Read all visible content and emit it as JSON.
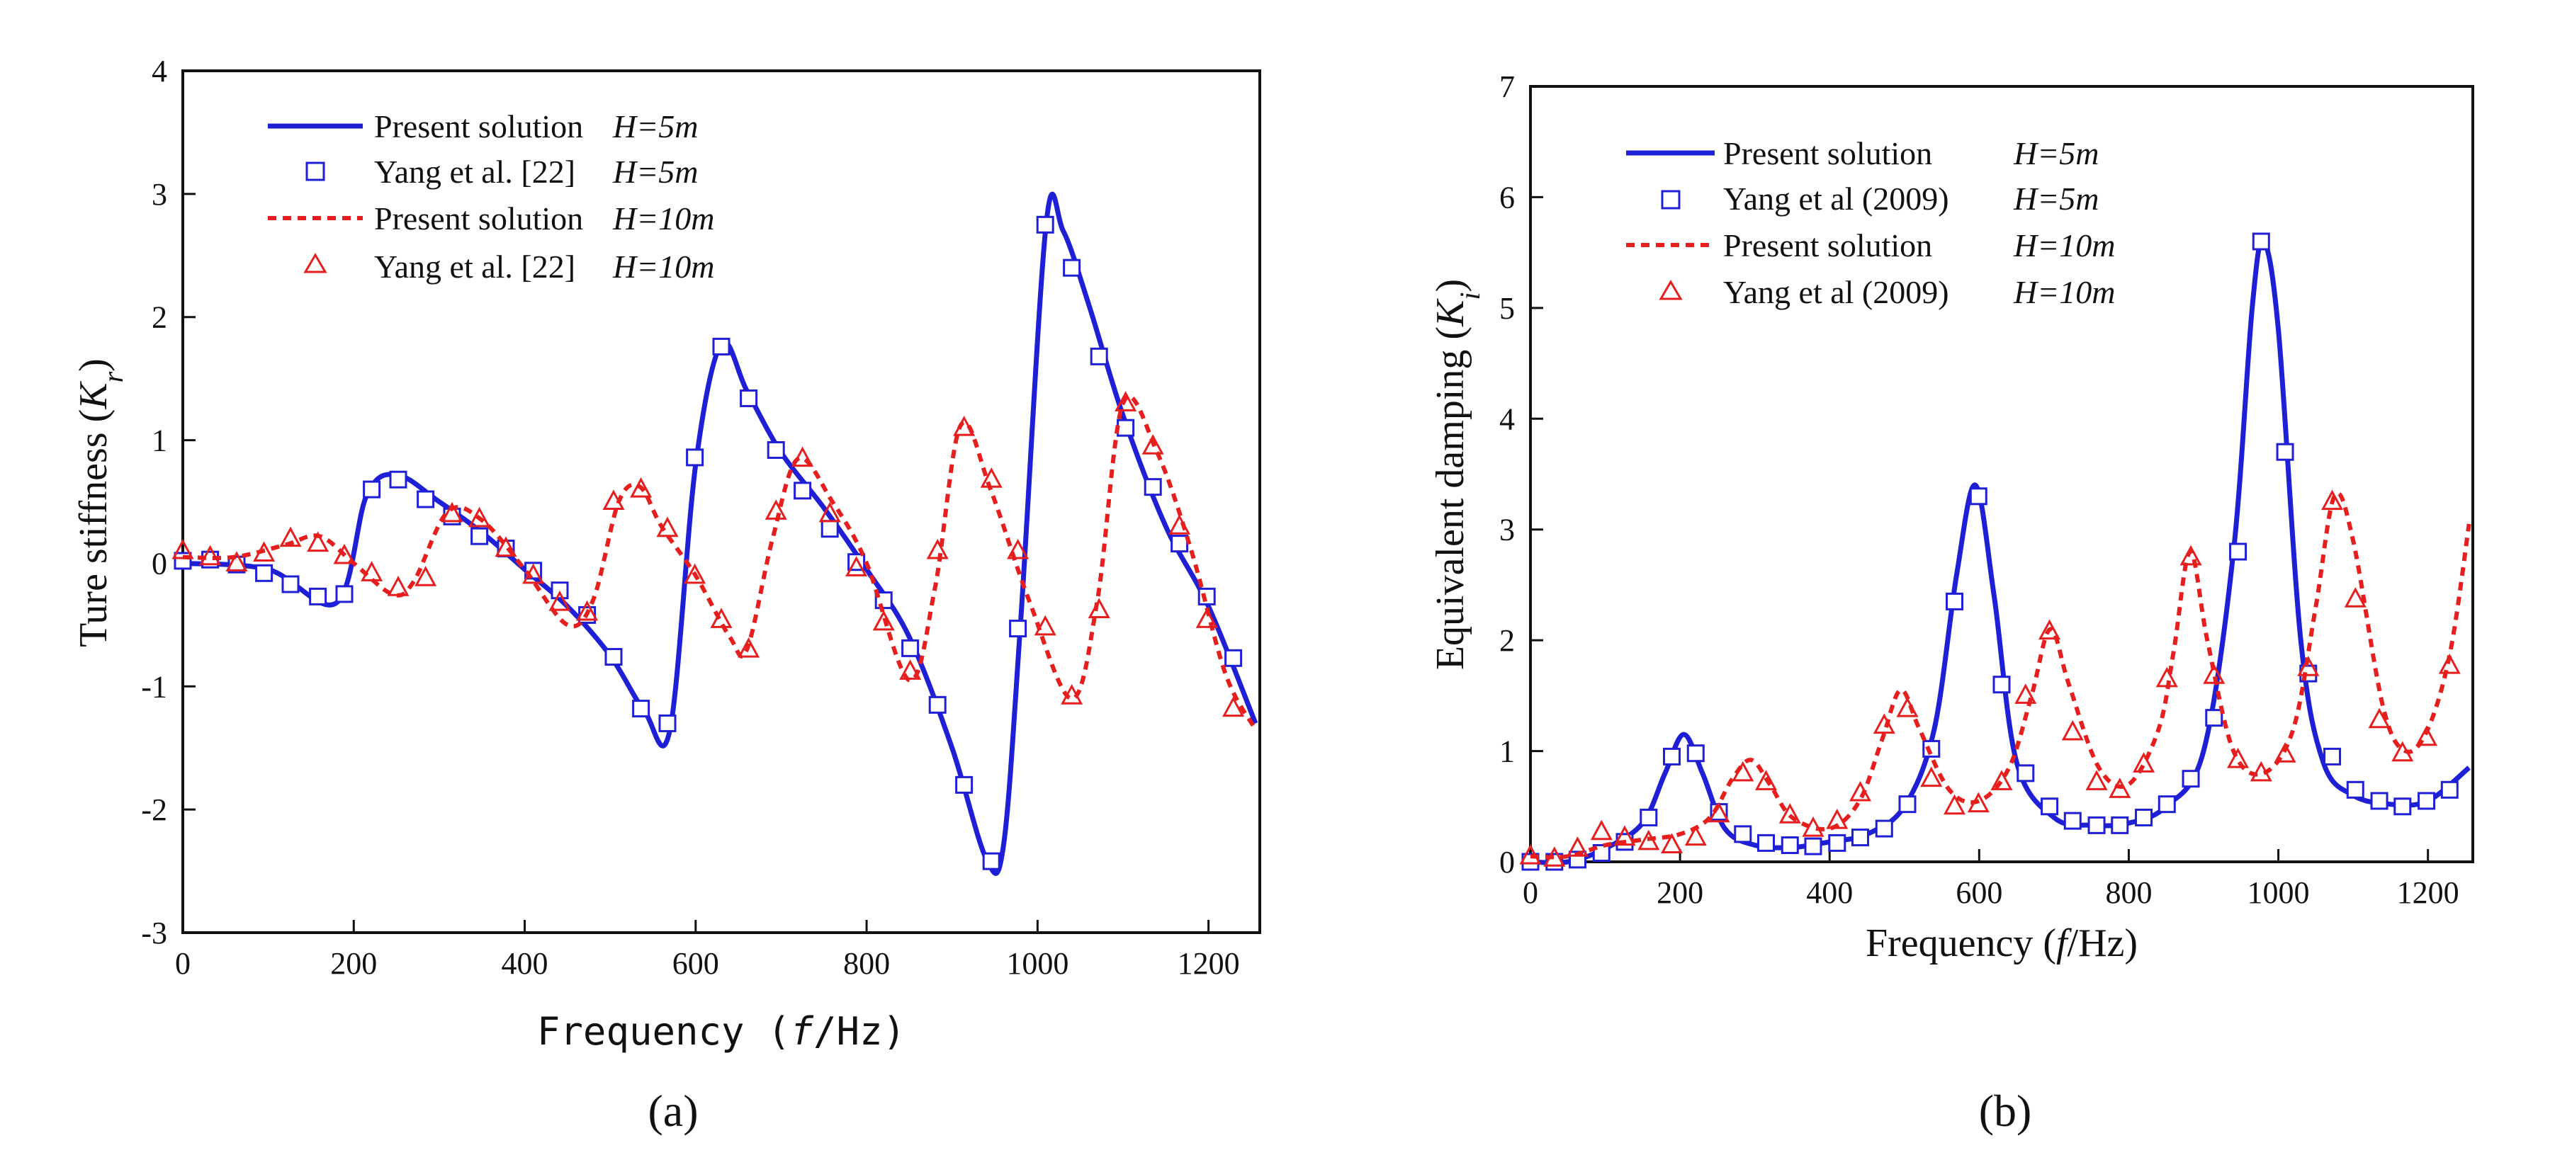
{
  "chart_data": [
    {
      "panel": "a",
      "panel_label": "(a)",
      "type": "line",
      "xlabel_prefix": "Frequency",
      "xlabel": "Frequency (f/Hz)",
      "ylabel_prefix": "Ture stiffness",
      "ylabel": "Ture stiffness (Kr)",
      "xlim": [
        0,
        1260
      ],
      "ylim": [
        -3,
        4
      ],
      "xticks": [
        0,
        200,
        400,
        600,
        800,
        1000,
        1200
      ],
      "yticks": [
        -3,
        -2,
        -1,
        0,
        1,
        2,
        3,
        4
      ],
      "legend_position": "top-left",
      "series": [
        {
          "name": "Present solution",
          "param": "H=5m",
          "style": "solid",
          "color": "#1f1fd6",
          "x": [
            0,
            100,
            180,
            215,
            250,
            300,
            350,
            400,
            450,
            500,
            540,
            570,
            600,
            630,
            660,
            700,
            750,
            800,
            850,
            900,
            940,
            960,
            980,
            1010,
            1030,
            1060,
            1100,
            1150,
            1200,
            1255
          ],
          "y": [
            0,
            -0.05,
            -0.32,
            0.55,
            0.72,
            0.5,
            0.25,
            -0.05,
            -0.35,
            -0.75,
            -1.2,
            -1.35,
            0.8,
            1.78,
            1.4,
            0.9,
            0.45,
            -0.05,
            -0.6,
            -1.5,
            -2.4,
            -2.3,
            -0.5,
            2.75,
            2.7,
            2.1,
            1.2,
            0.3,
            -0.35,
            -1.3
          ]
        },
        {
          "name": "Yang et al. [22]",
          "param": "H=5m",
          "style": "square",
          "color": "#1f1fd6",
          "x": [
            0,
            32,
            63,
            95,
            126,
            158,
            189,
            221,
            252,
            284,
            315,
            347,
            378,
            410,
            441,
            473,
            504,
            536,
            567,
            599,
            630,
            662,
            694,
            725,
            757,
            788,
            820,
            851,
            883,
            914,
            946,
            977,
            1009,
            1040,
            1072,
            1103,
            1135,
            1166,
            1198,
            1229
          ],
          "y": [
            0.02,
            0.03,
            -0.01,
            -0.08,
            -0.17,
            -0.27,
            -0.25,
            0.6,
            0.68,
            0.52,
            0.38,
            0.22,
            0.12,
            -0.06,
            -0.22,
            -0.42,
            -0.76,
            -1.18,
            -1.3,
            0.86,
            1.76,
            1.34,
            0.92,
            0.59,
            0.28,
            0.01,
            -0.3,
            -0.69,
            -1.15,
            -1.8,
            -2.42,
            -0.53,
            2.75,
            2.4,
            1.68,
            1.1,
            0.62,
            0.16,
            -0.27,
            -0.77
          ]
        },
        {
          "name": "Present solution",
          "param": "H=10m",
          "style": "dashed",
          "color": "#e61e1e",
          "x": [
            0,
            60,
            120,
            160,
            200,
            245,
            270,
            310,
            350,
            400,
            450,
            480,
            510,
            535,
            560,
            600,
            640,
            660,
            690,
            720,
            760,
            800,
            850,
            880,
            910,
            945,
            990,
            1040,
            1070,
            1100,
            1140,
            1180,
            1220,
            1255
          ],
          "y": [
            0.05,
            0.05,
            0.15,
            0.22,
            0.0,
            -0.25,
            -0.15,
            0.42,
            0.35,
            -0.05,
            -0.5,
            -0.3,
            0.5,
            0.62,
            0.3,
            -0.1,
            -0.6,
            -0.7,
            0.2,
            0.85,
            0.5,
            0.0,
            -0.95,
            -0.2,
            1.12,
            0.6,
            -0.3,
            -1.1,
            -0.3,
            1.3,
            0.9,
            0.1,
            -0.9,
            -1.35
          ]
        },
        {
          "name": "Yang et al. [22]",
          "param": "H=10m",
          "style": "triangle",
          "color": "#e61e1e",
          "x": [
            0,
            32,
            63,
            95,
            126,
            158,
            189,
            221,
            252,
            284,
            315,
            347,
            378,
            410,
            441,
            473,
            504,
            536,
            567,
            599,
            630,
            662,
            694,
            725,
            757,
            788,
            820,
            851,
            883,
            914,
            946,
            977,
            1009,
            1040,
            1072,
            1103,
            1135,
            1166,
            1198,
            1229
          ],
          "y": [
            0.1,
            0.05,
            0.0,
            0.08,
            0.2,
            0.16,
            0.06,
            -0.08,
            -0.2,
            -0.12,
            0.4,
            0.36,
            0.12,
            -0.1,
            -0.32,
            -0.4,
            0.5,
            0.6,
            0.28,
            -0.1,
            -0.46,
            -0.7,
            0.42,
            0.85,
            0.4,
            -0.04,
            -0.48,
            -0.88,
            0.1,
            1.1,
            0.68,
            0.1,
            -0.52,
            -1.08,
            -0.38,
            1.3,
            0.95,
            0.3,
            -0.46,
            -1.18
          ]
        }
      ]
    },
    {
      "panel": "b",
      "panel_label": "(b)",
      "type": "line",
      "xlabel_prefix": "Frequency",
      "xlabel": "Frequency (f/Hz)",
      "ylabel_prefix": "Equivalent damping",
      "ylabel": "Equivalent damping (Ki)",
      "xlim": [
        0,
        1260
      ],
      "ylim": [
        0,
        7
      ],
      "xticks": [
        0,
        200,
        400,
        600,
        800,
        1000,
        1200
      ],
      "yticks": [
        0,
        1,
        2,
        3,
        4,
        5,
        6,
        7
      ],
      "legend_position": "top-left",
      "series": [
        {
          "name": "Present solution",
          "param": "H=5m",
          "style": "solid",
          "color": "#1f1fd6",
          "x": [
            0,
            50,
            100,
            150,
            180,
            205,
            230,
            260,
            300,
            350,
            400,
            450,
            500,
            540,
            570,
            595,
            620,
            650,
            700,
            750,
            800,
            850,
            900,
            940,
            965,
            980,
            1000,
            1030,
            1060,
            1100,
            1150,
            1200,
            1255
          ],
          "y": [
            0,
            0.0,
            0.12,
            0.35,
            0.8,
            1.15,
            0.8,
            0.3,
            0.15,
            0.13,
            0.18,
            0.25,
            0.5,
            1.2,
            2.6,
            3.4,
            2.4,
            0.9,
            0.4,
            0.33,
            0.35,
            0.5,
            1.0,
            2.8,
            5.0,
            5.6,
            4.8,
            2.0,
            0.9,
            0.6,
            0.52,
            0.55,
            0.85
          ]
        },
        {
          "name": "Yang et al (2009)",
          "param": "H=5m",
          "style": "square",
          "color": "#1f1fd6",
          "x": [
            0,
            32,
            63,
            95,
            126,
            158,
            189,
            221,
            252,
            284,
            315,
            347,
            378,
            410,
            441,
            473,
            504,
            536,
            567,
            599,
            630,
            662,
            694,
            725,
            757,
            788,
            820,
            851,
            883,
            914,
            946,
            977,
            1009,
            1040,
            1072,
            1103,
            1135,
            1166,
            1198,
            1229
          ],
          "y": [
            0.0,
            0.0,
            0.02,
            0.08,
            0.18,
            0.4,
            0.95,
            0.98,
            0.45,
            0.25,
            0.17,
            0.15,
            0.14,
            0.17,
            0.22,
            0.3,
            0.52,
            1.02,
            2.35,
            3.3,
            1.6,
            0.8,
            0.5,
            0.37,
            0.33,
            0.33,
            0.4,
            0.52,
            0.75,
            1.3,
            2.8,
            5.6,
            3.7,
            1.7,
            0.95,
            0.65,
            0.55,
            0.5,
            0.55,
            0.65
          ]
        },
        {
          "name": "Present solution",
          "param": "H=10m",
          "style": "dashed",
          "color": "#e61e1e",
          "x": [
            0,
            50,
            100,
            150,
            200,
            240,
            270,
            295,
            320,
            350,
            400,
            440,
            470,
            495,
            520,
            560,
            600,
            640,
            670,
            695,
            720,
            760,
            800,
            840,
            860,
            882,
            905,
            940,
            980,
            1020,
            1050,
            1075,
            1100,
            1140,
            1170,
            1200,
            1230,
            1255
          ],
          "y": [
            0.05,
            0.05,
            0.15,
            0.2,
            0.25,
            0.4,
            0.75,
            0.92,
            0.7,
            0.4,
            0.3,
            0.55,
            1.1,
            1.55,
            1.2,
            0.65,
            0.55,
            0.85,
            1.5,
            2.1,
            1.6,
            0.85,
            0.7,
            1.2,
            1.9,
            2.8,
            2.0,
            1.0,
            0.8,
            1.2,
            2.3,
            3.3,
            2.9,
            1.4,
            1.0,
            1.2,
            1.9,
            3.05
          ]
        },
        {
          "name": "Yang et al (2009)",
          "param": "H=10m",
          "style": "triangle",
          "color": "#e61e1e",
          "x": [
            0,
            32,
            63,
            95,
            126,
            158,
            189,
            221,
            252,
            284,
            315,
            347,
            378,
            410,
            441,
            473,
            504,
            536,
            567,
            599,
            630,
            662,
            694,
            725,
            757,
            788,
            820,
            851,
            883,
            914,
            946,
            977,
            1009,
            1040,
            1072,
            1103,
            1135,
            1166,
            1198,
            1229
          ],
          "y": [
            0.05,
            0.03,
            0.12,
            0.27,
            0.22,
            0.18,
            0.15,
            0.22,
            0.43,
            0.8,
            0.72,
            0.42,
            0.3,
            0.37,
            0.62,
            1.23,
            1.38,
            0.75,
            0.5,
            0.52,
            0.72,
            1.5,
            2.08,
            1.17,
            0.72,
            0.65,
            0.88,
            1.65,
            2.75,
            1.68,
            0.92,
            0.8,
            0.97,
            1.75,
            3.25,
            2.37,
            1.28,
            0.98,
            1.12,
            1.77
          ]
        }
      ]
    }
  ]
}
